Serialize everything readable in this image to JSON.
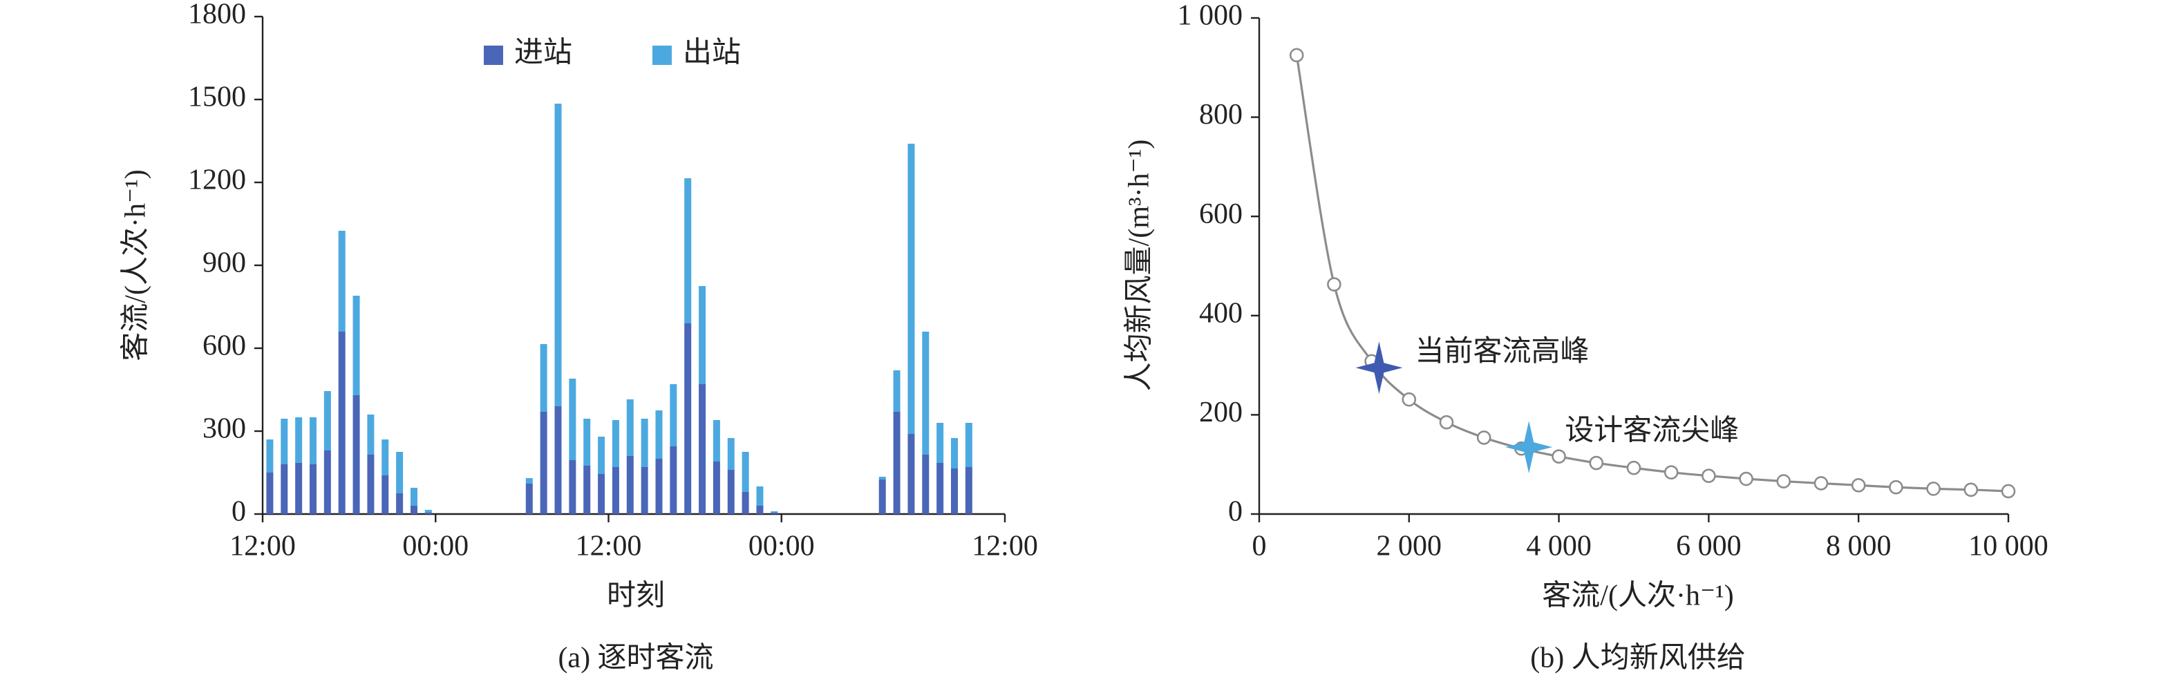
{
  "chart_data": [
    {
      "type": "bar",
      "stacked": true,
      "caption": "(a) 逐时客流",
      "xlabel": "时刻",
      "ylabel": "客流/(人次·h⁻¹)",
      "x": [
        0.5,
        1.5,
        2.5,
        3.5,
        4.5,
        5.5,
        6.5,
        7.5,
        8.5,
        9.5,
        10.5,
        11.5,
        18.5,
        19.5,
        20.5,
        21.5,
        22.5,
        23.5,
        24.5,
        25.5,
        26.5,
        27.5,
        28.5,
        29.5,
        30.5,
        31.5,
        32.5,
        33.5,
        34.5,
        35.5,
        43,
        44,
        45,
        46,
        47,
        48,
        49
      ],
      "series": [
        {
          "name": "进站",
          "color": "#4a66b8",
          "values": [
            150,
            180,
            185,
            180,
            230,
            660,
            430,
            215,
            140,
            75,
            30,
            5,
            110,
            370,
            390,
            195,
            175,
            145,
            170,
            210,
            170,
            200,
            245,
            690,
            470,
            190,
            160,
            80,
            30,
            5,
            125,
            370,
            290,
            215,
            185,
            165,
            170
          ]
        },
        {
          "name": "出站",
          "color": "#4ca9e0",
          "values": [
            120,
            165,
            165,
            170,
            215,
            365,
            360,
            145,
            130,
            150,
            65,
            10,
            20,
            245,
            1095,
            295,
            170,
            135,
            170,
            205,
            175,
            175,
            225,
            525,
            355,
            150,
            115,
            145,
            70,
            5,
            10,
            150,
            1050,
            445,
            145,
            110,
            160
          ]
        }
      ],
      "xlim": [
        0,
        51.5
      ],
      "xticks": [
        {
          "value": 0,
          "label": "12:00"
        },
        {
          "value": 12,
          "label": "00:00"
        },
        {
          "value": 24,
          "label": "12:00"
        },
        {
          "value": 36,
          "label": "00:00"
        },
        {
          "value": 51.5,
          "label": "12:00"
        }
      ],
      "ylim": [
        0,
        1800
      ],
      "yticks": [
        0,
        300,
        600,
        900,
        1200,
        1500,
        1800
      ],
      "legend": "top"
    },
    {
      "type": "line",
      "caption": "(b) 人均新风供给",
      "xlabel": "客流/(人次·h⁻¹)",
      "ylabel": "人均新风量/(m³·h⁻¹)",
      "x": [
        500,
        1000,
        1500,
        2000,
        2500,
        3000,
        3500,
        4000,
        4500,
        5000,
        5500,
        6000,
        6500,
        7000,
        7500,
        8000,
        8500,
        9000,
        9500,
        10000
      ],
      "series": [
        {
          "color": "#8c8c8c",
          "values": [
            925,
            463,
            308,
            231,
            185,
            154,
            132,
            116,
            103,
            93,
            84,
            77,
            71,
            66,
            62,
            58,
            54,
            51,
            49,
            46
          ]
        }
      ],
      "xlim": [
        0,
        10000
      ],
      "xticks": [
        0,
        {
          "value": 2000,
          "label": "2 000"
        },
        {
          "value": 4000,
          "label": "4 000"
        },
        {
          "value": 6000,
          "label": "6 000"
        },
        {
          "value": 8000,
          "label": "8 000"
        },
        {
          "value": 10000,
          "label": "10 000"
        }
      ],
      "ylim": [
        0,
        1000
      ],
      "yticks": [
        0,
        200,
        400,
        600,
        800,
        {
          "value": 1000,
          "label": "1 000"
        }
      ],
      "annotations": [
        {
          "text": "当前客流高峰",
          "x": 1600,
          "y": 295,
          "color": "#3f5bb0"
        },
        {
          "text": "设计客流尖峰",
          "x": 3600,
          "y": 135,
          "color": "#4ca9e0"
        }
      ]
    }
  ]
}
